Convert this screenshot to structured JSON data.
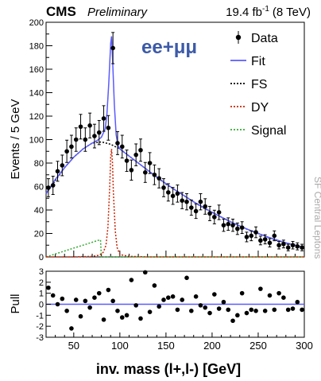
{
  "chart_data": {
    "type": "scatter",
    "header": {
      "experiment": "CMS",
      "status": "Preliminary",
      "luminosity": "19.4 fb",
      "lumi_exponent": "-1",
      "energy": "(8 TeV)"
    },
    "channel_label": "ee+μμ",
    "side_label": "SF Central Leptons",
    "xlabel": "inv. mass (l+,l-) [GeV]",
    "xlim": [
      20,
      300
    ],
    "xticks": [
      50,
      100,
      150,
      200,
      250,
      300
    ],
    "main": {
      "ylabel": "Events / 5 GeV",
      "ylim": [
        0,
        200
      ],
      "yticks": [
        0,
        20,
        40,
        60,
        80,
        100,
        120,
        140,
        160,
        180,
        200
      ],
      "legend": [
        {
          "label": "Data",
          "style": "marker",
          "color": "#000000"
        },
        {
          "label": "Fit",
          "style": "solid",
          "color": "#5a5aff"
        },
        {
          "label": "FS",
          "style": "dotted",
          "color": "#000000"
        },
        {
          "label": "DY",
          "style": "dotted",
          "color": "#cc2200"
        },
        {
          "label": "Signal",
          "style": "dotted",
          "color": "#33aa33"
        }
      ],
      "data": {
        "x": [
          22.5,
          27.5,
          32.5,
          37.5,
          42.5,
          47.5,
          52.5,
          57.5,
          62.5,
          67.5,
          72.5,
          77.5,
          82.5,
          87.5,
          92.5,
          97.5,
          102.5,
          107.5,
          112.5,
          117.5,
          122.5,
          127.5,
          132.5,
          137.5,
          142.5,
          147.5,
          152.5,
          157.5,
          162.5,
          167.5,
          172.5,
          177.5,
          182.5,
          187.5,
          192.5,
          197.5,
          202.5,
          207.5,
          212.5,
          217.5,
          222.5,
          227.5,
          232.5,
          237.5,
          242.5,
          247.5,
          252.5,
          257.5,
          262.5,
          267.5,
          272.5,
          277.5,
          282.5,
          287.5,
          292.5,
          297.5
        ],
        "y": [
          59,
          61,
          73,
          78,
          90,
          94,
          100,
          111,
          100,
          112,
          103,
          106,
          118,
          110,
          178,
          97,
          94,
          82,
          74,
          87,
          91,
          72,
          80,
          70,
          67,
          59,
          55,
          52,
          54,
          48,
          47,
          42,
          39,
          47,
          43,
          37,
          34,
          38,
          27,
          28,
          27,
          24,
          25,
          17,
          18,
          21,
          14,
          15,
          12,
          18,
          10,
          11,
          8,
          10,
          9,
          8
        ],
        "err": [
          7.7,
          7.8,
          8.5,
          8.8,
          9.5,
          9.7,
          10,
          10.5,
          10,
          10.6,
          10.1,
          10.3,
          10.9,
          10.5,
          13.3,
          9.8,
          9.7,
          9.1,
          8.6,
          9.3,
          9.5,
          8.5,
          8.9,
          8.4,
          8.2,
          7.7,
          7.4,
          7.2,
          7.3,
          6.9,
          6.9,
          6.5,
          6.2,
          6.9,
          6.6,
          6.1,
          5.8,
          6.2,
          5.2,
          5.3,
          5.2,
          4.9,
          5,
          4.1,
          4.2,
          4.6,
          3.7,
          3.9,
          3.5,
          4.2,
          3.2,
          3.3,
          2.8,
          3.2,
          3,
          2.8
        ]
      },
      "fit": {
        "x": [
          20,
          30,
          40,
          50,
          60,
          70,
          75,
          80,
          84,
          86,
          88,
          90,
          91,
          92,
          94,
          96,
          98,
          100,
          110,
          120,
          140,
          160,
          180,
          200,
          220,
          240,
          260,
          280,
          300
        ],
        "y": [
          54,
          66,
          76,
          85,
          92,
          97,
          99,
          102,
          109,
          122,
          148,
          182,
          188,
          170,
          130,
          104,
          95,
          92,
          86,
          80,
          68,
          57,
          47,
          38,
          30,
          23,
          17,
          12,
          8
        ]
      },
      "fs": {
        "x": [
          20,
          30,
          40,
          50,
          60,
          70,
          80,
          90,
          100,
          110,
          120,
          130,
          140,
          150,
          160,
          170,
          180,
          190,
          200,
          210,
          220,
          230,
          240,
          250,
          260,
          270,
          280,
          290,
          300
        ],
        "y": [
          54,
          65,
          76,
          85,
          92,
          97,
          98,
          96,
          92,
          86,
          80,
          74,
          68,
          62,
          57,
          52,
          47,
          42,
          38,
          34,
          30,
          26,
          23,
          20,
          17,
          14,
          12,
          10,
          8
        ]
      },
      "dy": {
        "x": [
          20,
          50,
          70,
          78,
          82,
          85,
          87,
          89,
          90,
          91,
          92,
          93,
          95,
          97,
          100,
          110,
          130,
          160,
          200,
          250,
          300
        ],
        "y": [
          0,
          0,
          0.5,
          1.5,
          4,
          10,
          25,
          60,
          85,
          92,
          80,
          55,
          22,
          8,
          2,
          0.5,
          0,
          0,
          0,
          0,
          0
        ]
      },
      "signal": {
        "x": [
          20,
          30,
          40,
          50,
          60,
          70,
          78,
          79,
          80,
          90,
          100,
          150,
          200,
          250,
          300
        ],
        "y": [
          0,
          2.5,
          5,
          7.5,
          10,
          12.5,
          14.5,
          14.5,
          0,
          0,
          0,
          0,
          0,
          0,
          0
        ]
      }
    },
    "pull": {
      "ylabel": "Pull",
      "ylim": [
        -3,
        3
      ],
      "yticks": [
        -3,
        -2,
        -1,
        0,
        1,
        2,
        3
      ],
      "values": [
        1.5,
        0.8,
        0,
        0.5,
        -0.6,
        -2.2,
        0.4,
        -1.1,
        0.3,
        -0.3,
        0.6,
        1,
        -1.4,
        1.3,
        0.3,
        -0.6,
        -1.2,
        -1,
        2.2,
        -0.1,
        -1.3,
        2.9,
        -0.7,
        1.7,
        -0.2,
        0.4,
        0.6,
        0.7,
        -0.5,
        0.4,
        2.4,
        -0.6,
        0.7,
        -0.1,
        -0.3,
        -0.8,
        0.9,
        -0.4,
        0.2,
        -0.5,
        -1.5,
        -1,
        1,
        -0.8,
        -0.5,
        -0.6,
        1.4,
        -0.6,
        0.8,
        -0.5,
        1,
        0.6,
        -0.5,
        -0.4,
        0.2,
        -0.5
      ]
    }
  }
}
